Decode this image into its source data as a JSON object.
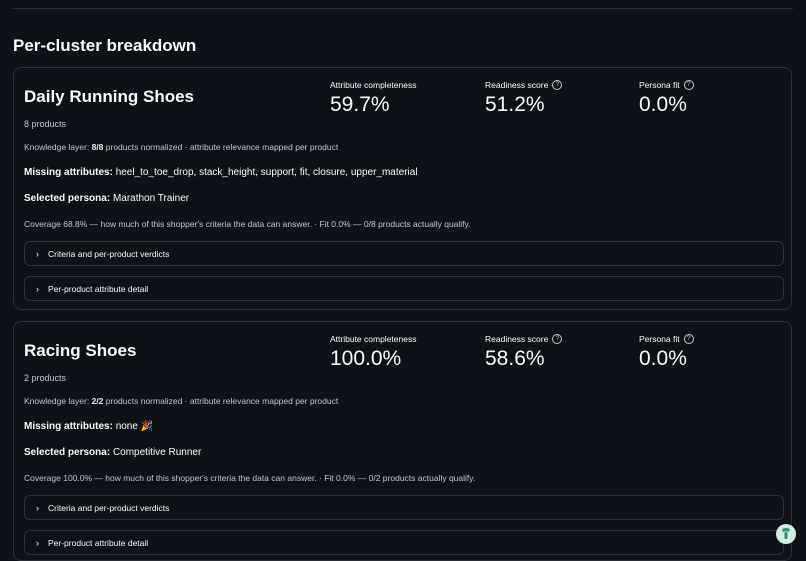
{
  "section_title": "Per-cluster breakdown",
  "metric_labels": {
    "completeness": "Attribute completeness",
    "readiness": "Readiness score",
    "persona_fit": "Persona fit"
  },
  "labels": {
    "missing_attributes": "Missing attributes:",
    "selected_persona": "Selected persona:"
  },
  "clusters": [
    {
      "name": "Daily Running Shoes",
      "product_count": "8 products",
      "completeness": "59.7%",
      "readiness": "51.2%",
      "persona_fit": "0.0%",
      "knowledge_prefix": "Knowledge layer: ",
      "knowledge_count": "8/8",
      "knowledge_suffix": " products normalized · attribute relevance mapped per product",
      "missing_attributes": "heel_to_toe_drop, stack_height, support, fit, closure, upper_material",
      "persona": "Marathon Trainer",
      "coverage": "Coverage 68.8% — how much of this shopper's criteria the data can answer. · Fit 0.0% — 0/8 products actually qualify.",
      "expanders": [
        "Criteria and per-product verdicts",
        "Per-product attribute detail"
      ]
    },
    {
      "name": "Racing Shoes",
      "product_count": "2 products",
      "completeness": "100.0%",
      "readiness": "58.6%",
      "persona_fit": "0.0%",
      "knowledge_prefix": "Knowledge layer: ",
      "knowledge_count": "2/2",
      "knowledge_suffix": " products normalized · attribute relevance mapped per product",
      "missing_attributes": "none 🎉",
      "persona": "Competitive Runner",
      "coverage": "Coverage 100.0% — how much of this shopper's criteria the data can answer. · Fit 0.0% — 0/2 products actually qualify.",
      "expanders": [
        "Criteria and per-product verdicts",
        "Per-product attribute detail"
      ]
    }
  ],
  "icons": {
    "expander": "chevron-right-icon",
    "help": "help-circle-icon",
    "fab": "streamlit-logo-icon"
  },
  "colors": {
    "background": "#0e1117",
    "border": "#2c303a",
    "text": "#fafafa",
    "muted": "#c4c6cc"
  }
}
